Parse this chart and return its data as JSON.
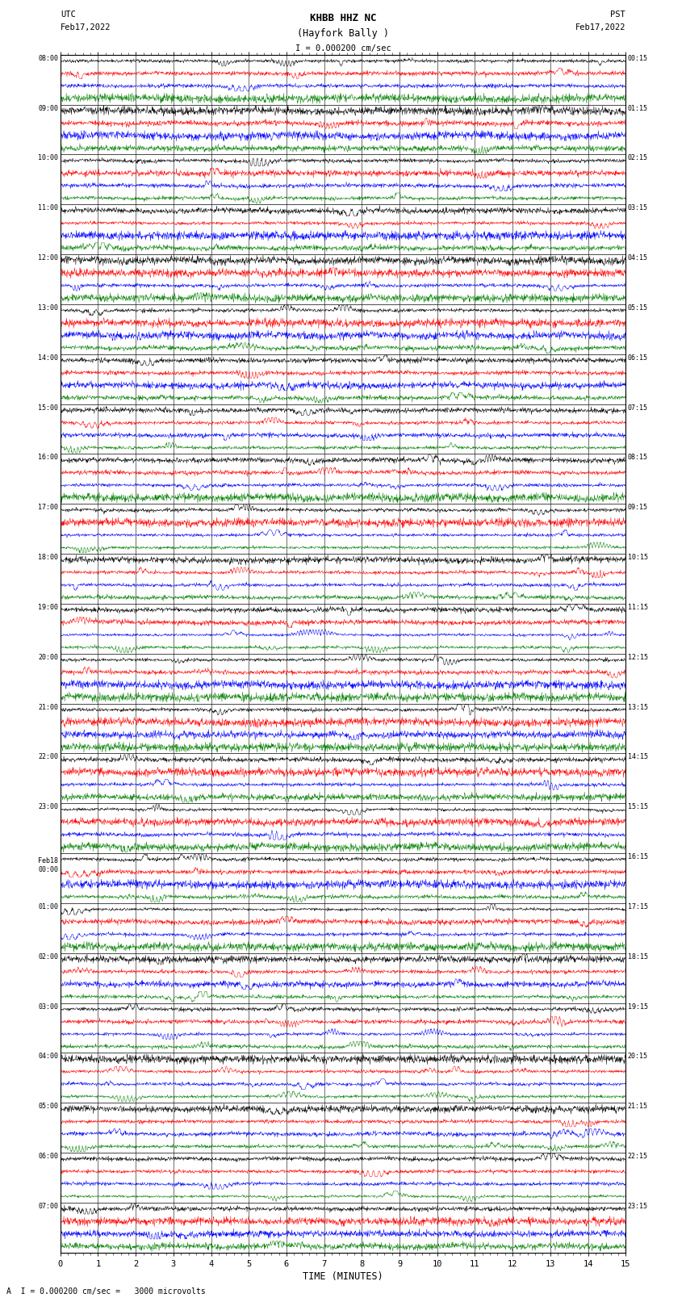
{
  "title_line1": "KHBB HHZ NC",
  "title_line2": "(Hayfork Bally )",
  "scale_text": "I = 0.000200 cm/sec",
  "left_label_top": "UTC",
  "left_label_date": "Feb17,2022",
  "right_label_top": "PST",
  "right_label_date": "Feb17,2022",
  "bottom_label": "TIME (MINUTES)",
  "footer_text": "A  I = 0.000200 cm/sec =   3000 microvolts",
  "hour_labels_utc": [
    "08:00",
    "09:00",
    "10:00",
    "11:00",
    "12:00",
    "13:00",
    "14:00",
    "15:00",
    "16:00",
    "17:00",
    "18:00",
    "19:00",
    "20:00",
    "21:00",
    "22:00",
    "23:00",
    "Feb18\n00:00",
    "01:00",
    "02:00",
    "03:00",
    "04:00",
    "05:00",
    "06:00",
    "07:00"
  ],
  "hour_labels_pst": [
    "00:15",
    "01:15",
    "02:15",
    "03:15",
    "04:15",
    "05:15",
    "06:15",
    "07:15",
    "08:15",
    "09:15",
    "10:15",
    "11:15",
    "12:15",
    "13:15",
    "14:15",
    "15:15",
    "16:15",
    "17:15",
    "18:15",
    "19:15",
    "20:15",
    "21:15",
    "22:15",
    "23:15"
  ],
  "colors": [
    "black",
    "red",
    "blue",
    "green"
  ],
  "bg_color": "#ffffff",
  "fig_width": 8.5,
  "fig_height": 16.13,
  "dpi": 100,
  "x_min": 0,
  "x_max": 15,
  "x_ticks": [
    0,
    1,
    2,
    3,
    4,
    5,
    6,
    7,
    8,
    9,
    10,
    11,
    12,
    13,
    14,
    15
  ],
  "n_hours": 24,
  "n_traces_per_hour": 4,
  "n_samples": 1800
}
